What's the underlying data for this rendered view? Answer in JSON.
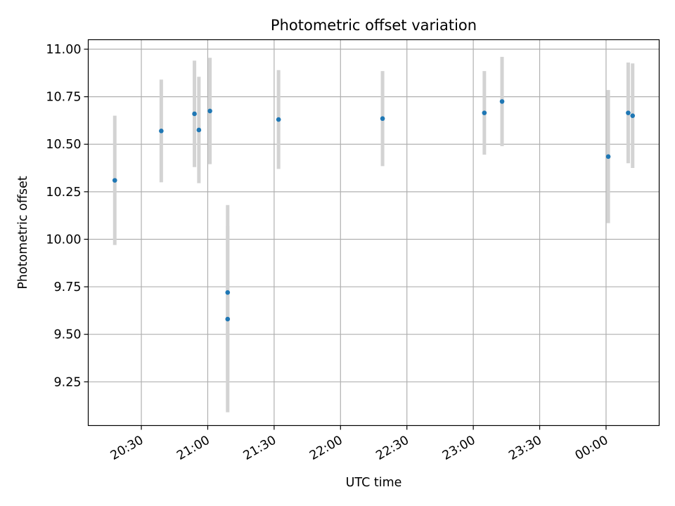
{
  "chart_data": {
    "type": "scatter",
    "title": "Photometric offset variation",
    "xlabel": "UTC time",
    "ylabel": "Photometric offset",
    "grid": true,
    "x_tick_labels": [
      "20:30",
      "21:00",
      "21:30",
      "22:00",
      "22:30",
      "23:00",
      "23:30",
      "00:00"
    ],
    "x_tick_minutes": [
      1230,
      1260,
      1290,
      1320,
      1350,
      1380,
      1410,
      1440
    ],
    "xlim": [
      "20:06",
      "00:24"
    ],
    "y_tick_labels": [
      "9.25",
      "9.50",
      "9.75",
      "10.00",
      "10.25",
      "10.50",
      "10.75",
      "11.00"
    ],
    "y_ticks": [
      9.25,
      9.5,
      9.75,
      10.0,
      10.25,
      10.5,
      10.75,
      11.0
    ],
    "ylim": [
      9.02,
      11.05
    ],
    "colors": {
      "point": "#1f77b4",
      "errorbar": "#d3d3d3",
      "grid": "#b0b0b0"
    },
    "points": [
      {
        "time": "20:18",
        "y": 10.31,
        "err": 0.34
      },
      {
        "time": "20:39",
        "y": 10.57,
        "err": 0.27
      },
      {
        "time": "20:54",
        "y": 10.66,
        "err": 0.28
      },
      {
        "time": "20:56",
        "y": 10.575,
        "err": 0.28
      },
      {
        "time": "21:01",
        "y": 10.675,
        "err": 0.28
      },
      {
        "time": "21:09",
        "y": 9.58,
        "err": 0.49
      },
      {
        "time": "21:09",
        "y": 9.72,
        "err": 0.46
      },
      {
        "time": "21:32",
        "y": 10.63,
        "err": 0.26
      },
      {
        "time": "22:19",
        "y": 10.635,
        "err": 0.25
      },
      {
        "time": "23:05",
        "y": 10.665,
        "err": 0.22
      },
      {
        "time": "23:13",
        "y": 10.725,
        "err": 0.235
      },
      {
        "time": "00:01",
        "y": 10.435,
        "err": 0.35
      },
      {
        "time": "00:10",
        "y": 10.665,
        "err": 0.265
      },
      {
        "time": "00:12",
        "y": 10.65,
        "err": 0.275
      }
    ]
  }
}
